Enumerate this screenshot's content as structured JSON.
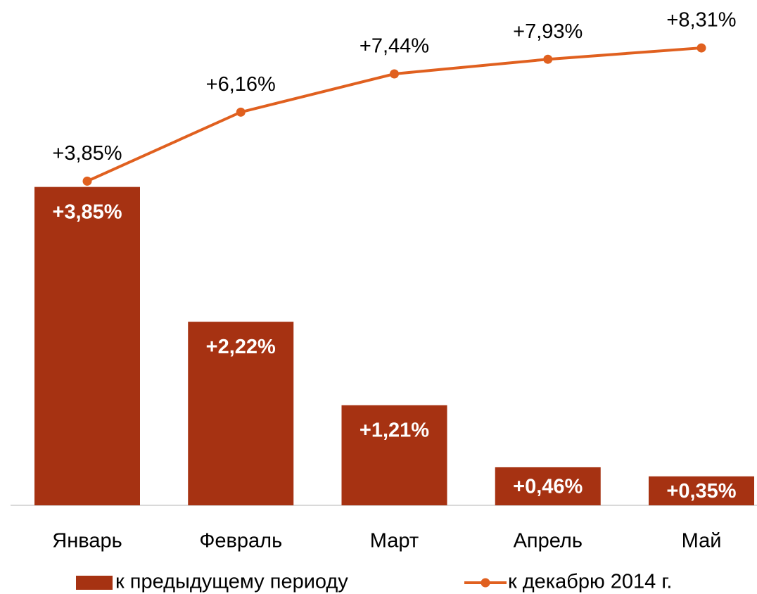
{
  "chart_data": {
    "type": "bar_line",
    "categories": [
      "Январь",
      "Февраль",
      "Март",
      "Апрель",
      "Май"
    ],
    "series": [
      {
        "name": "к предыдущему периоду",
        "type": "bar",
        "color": "#a63212",
        "values": [
          3.85,
          2.22,
          1.21,
          0.46,
          0.35
        ],
        "value_labels": [
          "+3,85%",
          "+2,22%",
          "+1,21%",
          "+0,46%",
          "+0,35%"
        ]
      },
      {
        "name": "к декабрю 2014 г.",
        "type": "line",
        "axis": "y2",
        "color": "#e0601f",
        "values": [
          3.85,
          6.16,
          7.44,
          7.93,
          8.31
        ],
        "value_labels": [
          "+3,85%",
          "+6,16%",
          "+7,44%",
          "+7,93%",
          "+8,31%"
        ]
      }
    ],
    "ylim": [
      0,
      5.6
    ],
    "y2lim": [
      -7,
      8.5
    ],
    "legend": "bottom"
  }
}
